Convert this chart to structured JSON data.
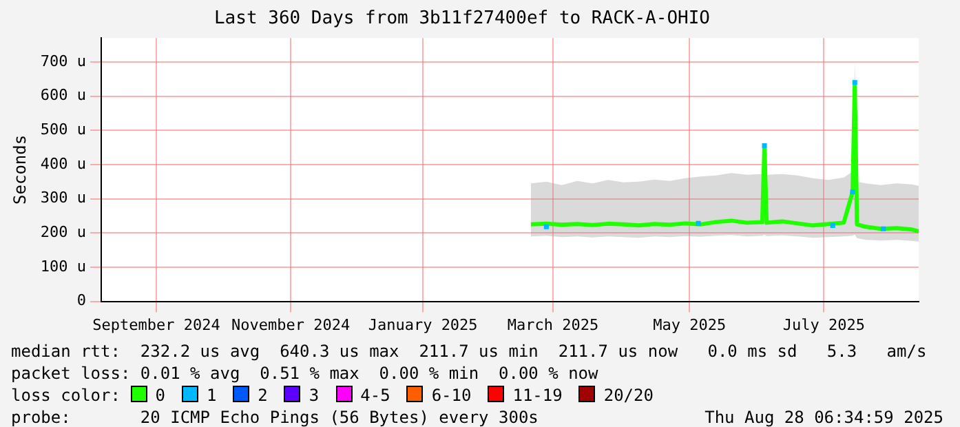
{
  "chart_data": {
    "type": "line",
    "title": "Last 360 Days from 3b11f27400ef to RACK-A-OHIO",
    "ylabel": "Seconds",
    "xlim": [
      "2024-08-22",
      "2025-08-28"
    ],
    "xticks": [
      {
        "value": "2024-09-16",
        "label": "September 2024"
      },
      {
        "value": "2024-11-16",
        "label": "November 2024"
      },
      {
        "value": "2025-01-15",
        "label": "January 2025"
      },
      {
        "value": "2025-03-15",
        "label": "March 2025"
      },
      {
        "value": "2025-05-16",
        "label": "May 2025"
      },
      {
        "value": "2025-07-16",
        "label": "July 2025"
      }
    ],
    "ylim": [
      0,
      770
    ],
    "yticks": [
      0,
      {
        "value": 100,
        "label": "100 u"
      },
      {
        "value": 200,
        "label": "200 u"
      },
      {
        "value": 300,
        "label": "300 u"
      },
      {
        "value": 400,
        "label": "400 u"
      },
      {
        "value": 500,
        "label": "500 u"
      },
      {
        "value": 600,
        "label": "600 u"
      },
      {
        "value": 700,
        "label": "700 u"
      }
    ],
    "grid": true,
    "legend": "bottom",
    "legend_title": "loss color:",
    "marker": "none",
    "series": [
      {
        "name": "0",
        "color": "#20ff00",
        "x": [
          "2025-03-05",
          "2025-03-12",
          "2025-03-19",
          "2025-03-26",
          "2025-04-02",
          "2025-04-09",
          "2025-04-16",
          "2025-04-23",
          "2025-04-30",
          "2025-05-07",
          "2025-05-14",
          "2025-05-21",
          "2025-05-28",
          "2025-06-04",
          "2025-06-11",
          "2025-06-18",
          "2025-06-19",
          "2025-06-20",
          "2025-06-27",
          "2025-07-04",
          "2025-07-11",
          "2025-07-18",
          "2025-07-25",
          "2025-07-29",
          "2025-07-30",
          "2025-07-31",
          "2025-08-04",
          "2025-08-11",
          "2025-08-18",
          "2025-08-25",
          "2025-08-28"
        ],
        "values": [
          225,
          227,
          224,
          226,
          223,
          227,
          225,
          222,
          226,
          224,
          228,
          225,
          232,
          236,
          230,
          232,
          455,
          230,
          234,
          228,
          222,
          226,
          230,
          320,
          640,
          225,
          218,
          212,
          214,
          210,
          205
        ],
        "lower": [
          190,
          192,
          188,
          190,
          187,
          190,
          188,
          186,
          190,
          188,
          191,
          189,
          192,
          194,
          190,
          192,
          195,
          191,
          193,
          190,
          186,
          188,
          190,
          192,
          195,
          185,
          180,
          178,
          180,
          177,
          175
        ],
        "upper": [
          345,
          350,
          340,
          352,
          345,
          355,
          348,
          350,
          356,
          352,
          360,
          365,
          368,
          375,
          370,
          372,
          460,
          370,
          372,
          368,
          360,
          355,
          362,
          380,
          700,
          350,
          345,
          340,
          345,
          342,
          338
        ]
      },
      {
        "name": "1",
        "type": "scatter",
        "marker": "square",
        "color": "#00b8ff",
        "x": [
          "2025-03-12",
          "2025-05-20",
          "2025-06-19",
          "2025-07-20",
          "2025-07-29",
          "2025-07-30",
          "2025-08-12"
        ],
        "values": [
          218,
          228,
          455,
          222,
          320,
          640,
          212
        ]
      },
      {
        "name": "2",
        "color": "#0059ff"
      },
      {
        "name": "3",
        "color": "#5e00ff"
      },
      {
        "name": "4-5",
        "color": "#ff00ff"
      },
      {
        "name": "6-10",
        "color": "#ff5e00"
      },
      {
        "name": "11-19",
        "color": "#ff0000"
      },
      {
        "name": "20/20",
        "color": "#a10000"
      }
    ],
    "annotations": [
      "median rtt:  232.2 us avg  640.3 us max  211.7 us min  211.7 us now   0.0 ms sd   5.3   am/s",
      "packet loss: 0.01 % avg  0.51 % max  0.00 % min  0.00 % now",
      "probe:       20 ICMP Echo Pings (56 Bytes) every 300s",
      "Thu Aug 28 06:34:59 2025"
    ]
  }
}
